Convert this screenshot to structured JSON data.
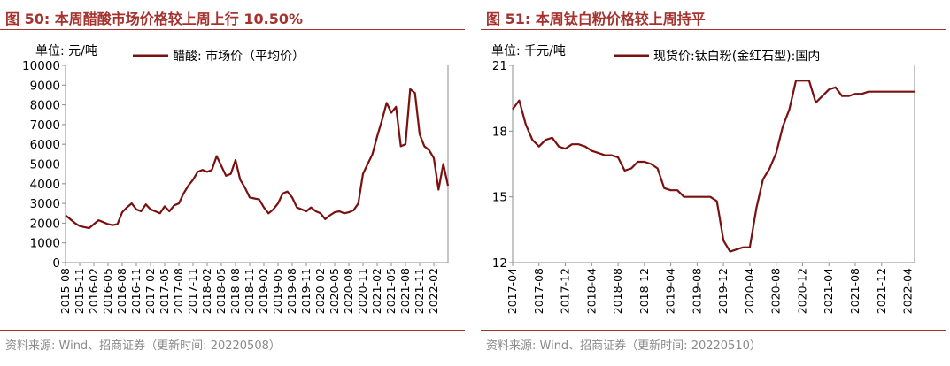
{
  "colors": {
    "title": "#a5322e",
    "series": "#7b1010",
    "axis": "#8c8c8c",
    "source": "#8a8a8a"
  },
  "left": {
    "title": "图 50: 本周醋酸市场价格较上周上行 10.50%",
    "source": "资料来源: Wind、招商证券（更新时间: 20220508）",
    "unit": "单位: 元/吨"
  },
  "right": {
    "title": "图 51: 本周钛白粉价格较上周持平",
    "source": "资料来源: Wind、招商证券（更新时间: 20220510）",
    "unit": "单位: 千元/吨"
  },
  "chart_data": [
    {
      "type": "line",
      "ylim": [
        0,
        10000
      ],
      "yticks": [
        0,
        1000,
        2000,
        3000,
        4000,
        5000,
        6000,
        7000,
        8000,
        9000,
        10000
      ],
      "xlim": [
        "2015-08",
        "2022-05"
      ],
      "xticks": [
        "2015-08",
        "2015-11",
        "2016-02",
        "2016-05",
        "2016-08",
        "2016-11",
        "2017-02",
        "2017-05",
        "2017-08",
        "2017-11",
        "2018-02",
        "2018-05",
        "2018-08",
        "2018-11",
        "2019-02",
        "2019-05",
        "2019-08",
        "2019-11",
        "2020-02",
        "2020-05",
        "2020-08",
        "2020-11",
        "2021-02",
        "2021-05",
        "2021-08",
        "2021-11",
        "2022-02"
      ],
      "grid": false,
      "legend_position": "top",
      "series": [
        {
          "name": "醋酸: 市场价（平均价）",
          "x": [
            "2015-08",
            "2015-09",
            "2015-10",
            "2015-11",
            "2015-12",
            "2016-01",
            "2016-02",
            "2016-03",
            "2016-04",
            "2016-05",
            "2016-06",
            "2016-07",
            "2016-08",
            "2016-09",
            "2016-10",
            "2016-11",
            "2016-12",
            "2017-01",
            "2017-02",
            "2017-03",
            "2017-04",
            "2017-05",
            "2017-06",
            "2017-07",
            "2017-08",
            "2017-09",
            "2017-10",
            "2017-11",
            "2017-12",
            "2018-01",
            "2018-02",
            "2018-03",
            "2018-04",
            "2018-05",
            "2018-06",
            "2018-07",
            "2018-08",
            "2018-09",
            "2018-10",
            "2018-11",
            "2018-12",
            "2019-01",
            "2019-02",
            "2019-03",
            "2019-04",
            "2019-05",
            "2019-06",
            "2019-07",
            "2019-08",
            "2019-09",
            "2019-10",
            "2019-11",
            "2019-12",
            "2020-01",
            "2020-02",
            "2020-03",
            "2020-04",
            "2020-05",
            "2020-06",
            "2020-07",
            "2020-08",
            "2020-09",
            "2020-10",
            "2020-11",
            "2020-12",
            "2021-01",
            "2021-02",
            "2021-03",
            "2021-04",
            "2021-05",
            "2021-06",
            "2021-07",
            "2021-08",
            "2021-09",
            "2021-10",
            "2021-11",
            "2021-12",
            "2022-01",
            "2022-02",
            "2022-03",
            "2022-04",
            "2022-05"
          ],
          "values": [
            2400,
            2200,
            2000,
            1850,
            1800,
            1750,
            1950,
            2150,
            2050,
            1950,
            1900,
            1950,
            2550,
            2800,
            3000,
            2700,
            2600,
            2950,
            2700,
            2600,
            2500,
            2850,
            2600,
            2900,
            3000,
            3500,
            3900,
            4200,
            4600,
            4700,
            4600,
            4700,
            5400,
            4900,
            4400,
            4500,
            5200,
            4200,
            3800,
            3300,
            3250,
            3200,
            2800,
            2500,
            2700,
            3000,
            3500,
            3600,
            3300,
            2800,
            2700,
            2600,
            2800,
            2600,
            2500,
            2200,
            2400,
            2550,
            2600,
            2500,
            2550,
            2650,
            3000,
            4500,
            5000,
            5500,
            6400,
            7200,
            8100,
            7600,
            7900,
            5900,
            6000,
            8800,
            8600,
            6500,
            5900,
            5700,
            5300,
            3700,
            5000,
            3900
          ]
        }
      ]
    },
    {
      "type": "line",
      "ylim": [
        12,
        21
      ],
      "yticks": [
        12,
        15,
        18,
        21
      ],
      "xlim": [
        "2017-04",
        "2022-05"
      ],
      "xticks": [
        "2017-04",
        "2017-08",
        "2017-12",
        "2018-04",
        "2018-08",
        "2018-12",
        "2019-04",
        "2019-08",
        "2019-12",
        "2020-04",
        "2020-08",
        "2020-12",
        "2021-04",
        "2021-08",
        "2021-12",
        "2022-04"
      ],
      "grid": false,
      "legend_position": "top",
      "series": [
        {
          "name": "现货价:钛白粉(金红石型):国内",
          "x": [
            "2017-04",
            "2017-05",
            "2017-06",
            "2017-07",
            "2017-08",
            "2017-09",
            "2017-10",
            "2017-11",
            "2017-12",
            "2018-01",
            "2018-02",
            "2018-03",
            "2018-04",
            "2018-05",
            "2018-06",
            "2018-07",
            "2018-08",
            "2018-09",
            "2018-10",
            "2018-11",
            "2018-12",
            "2019-01",
            "2019-02",
            "2019-03",
            "2019-04",
            "2019-05",
            "2019-06",
            "2019-07",
            "2019-08",
            "2019-09",
            "2019-10",
            "2019-11",
            "2019-12",
            "2020-01",
            "2020-02",
            "2020-03",
            "2020-04",
            "2020-05",
            "2020-06",
            "2020-07",
            "2020-08",
            "2020-09",
            "2020-10",
            "2020-11",
            "2020-12",
            "2021-01",
            "2021-02",
            "2021-03",
            "2021-04",
            "2021-05",
            "2021-06",
            "2021-07",
            "2021-08",
            "2021-09",
            "2021-10",
            "2021-11",
            "2021-12",
            "2022-01",
            "2022-02",
            "2022-03",
            "2022-04",
            "2022-05"
          ],
          "values": [
            19.0,
            19.4,
            18.3,
            17.6,
            17.3,
            17.6,
            17.7,
            17.3,
            17.2,
            17.4,
            17.4,
            17.3,
            17.1,
            17.0,
            16.9,
            16.9,
            16.8,
            16.2,
            16.3,
            16.6,
            16.6,
            16.5,
            16.3,
            15.4,
            15.3,
            15.3,
            15.0,
            15.0,
            15.0,
            15.0,
            15.0,
            14.8,
            13.0,
            12.5,
            12.6,
            12.7,
            12.7,
            14.5,
            15.8,
            16.3,
            17.0,
            18.2,
            19.0,
            20.3,
            20.3,
            20.3,
            19.3,
            19.6,
            19.9,
            20.0,
            19.6,
            19.6,
            19.7,
            19.7,
            19.8,
            19.8,
            19.8,
            19.8,
            19.8,
            19.8,
            19.8,
            19.8
          ]
        }
      ]
    }
  ]
}
